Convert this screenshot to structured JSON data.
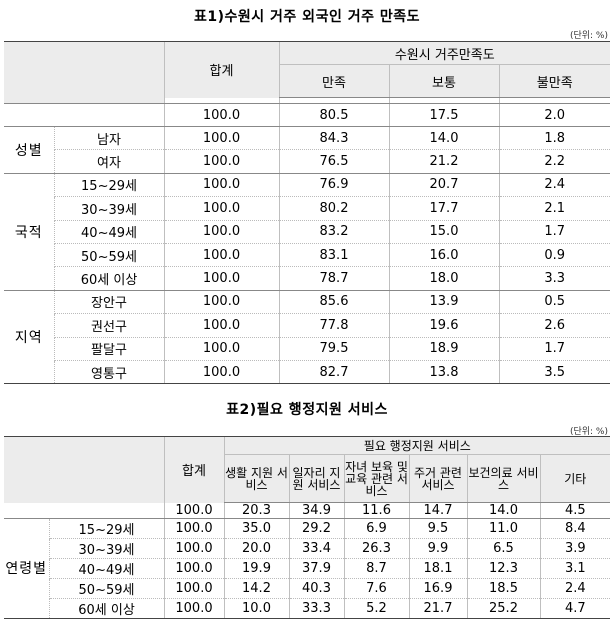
{
  "table1": {
    "title": "표1)수원시 거주 외국인 거주 만족도",
    "unit": "(단위: %)",
    "col_total": "합계",
    "col_group": "수원시 거주만족도",
    "cols": [
      "만족",
      "보통",
      "불만족"
    ],
    "overall": [
      "100.0",
      "80.5",
      "17.5",
      "2.0"
    ],
    "groups": [
      {
        "name": "성별",
        "rows": [
          {
            "label": "남자",
            "values": [
              "100.0",
              "84.3",
              "14.0",
              "1.8"
            ]
          },
          {
            "label": "여자",
            "values": [
              "100.0",
              "76.5",
              "21.2",
              "2.2"
            ]
          }
        ]
      },
      {
        "name": "국적",
        "rows": [
          {
            "label": "15~29세",
            "values": [
              "100.0",
              "76.9",
              "20.7",
              "2.4"
            ]
          },
          {
            "label": "30~39세",
            "values": [
              "100.0",
              "80.2",
              "17.7",
              "2.1"
            ]
          },
          {
            "label": "40~49세",
            "values": [
              "100.0",
              "83.2",
              "15.0",
              "1.7"
            ]
          },
          {
            "label": "50~59세",
            "values": [
              "100.0",
              "83.1",
              "16.0",
              "0.9"
            ]
          },
          {
            "label": "60세 이상",
            "values": [
              "100.0",
              "78.7",
              "18.0",
              "3.3"
            ]
          }
        ]
      },
      {
        "name": "지역",
        "rows": [
          {
            "label": "장안구",
            "values": [
              "100.0",
              "85.6",
              "13.9",
              "0.5"
            ]
          },
          {
            "label": "권선구",
            "values": [
              "100.0",
              "77.8",
              "19.6",
              "2.6"
            ]
          },
          {
            "label": "팔달구",
            "values": [
              "100.0",
              "79.5",
              "18.9",
              "1.7"
            ]
          },
          {
            "label": "영통구",
            "values": [
              "100.0",
              "82.7",
              "13.8",
              "3.5"
            ]
          }
        ]
      }
    ]
  },
  "table2": {
    "title": "표2)필요 행정지원 서비스",
    "unit": "(단위: %)",
    "col_total": "합계",
    "col_group": "필요 행정지원 서비스",
    "cols": [
      "생활 지원 서비스",
      "일자리 지원 서비스",
      "자녀 보육 및 교육 관련 서비스",
      "주거 관련 서비스",
      "보건의료 서비스",
      "기타"
    ],
    "overall": [
      "100.0",
      "20.3",
      "34.9",
      "11.6",
      "14.7",
      "14.0",
      "4.5"
    ],
    "group": {
      "name": "연령별",
      "rows": [
        {
          "label": "15~29세",
          "values": [
            "100.0",
            "35.0",
            "29.2",
            "6.9",
            "9.5",
            "11.0",
            "8.4"
          ]
        },
        {
          "label": "30~39세",
          "values": [
            "100.0",
            "20.0",
            "33.4",
            "26.3",
            "9.9",
            "6.5",
            "3.9"
          ]
        },
        {
          "label": "40~49세",
          "values": [
            "100.0",
            "19.9",
            "37.9",
            "8.7",
            "18.1",
            "12.3",
            "3.1"
          ]
        },
        {
          "label": "50~59세",
          "values": [
            "100.0",
            "14.2",
            "40.3",
            "7.6",
            "16.9",
            "18.5",
            "2.4"
          ]
        },
        {
          "label": "60세 이상",
          "values": [
            "100.0",
            "10.0",
            "33.3",
            "5.2",
            "21.7",
            "25.2",
            "4.7"
          ]
        }
      ]
    }
  }
}
